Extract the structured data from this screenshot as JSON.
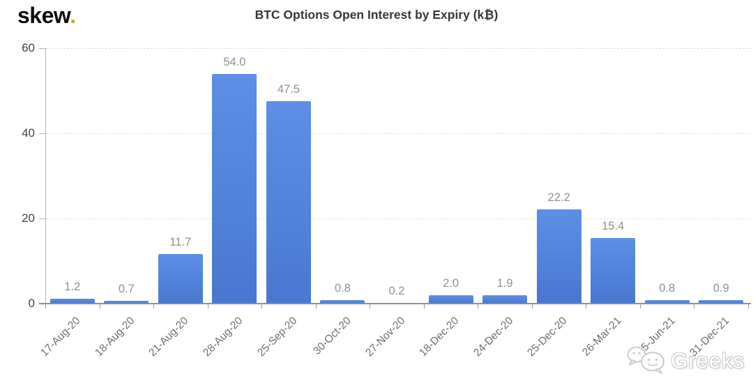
{
  "logo": {
    "text": "skew",
    "dot": "."
  },
  "watermark": {
    "icon": "wechat-icon",
    "text": "Greeks"
  },
  "chart_data": {
    "type": "bar",
    "title": "BTC Options Open Interest by Expiry (k₿)",
    "categories": [
      "17-Aug-20",
      "18-Aug-20",
      "21-Aug-20",
      "28-Aug-20",
      "25-Sep-20",
      "30-Oct-20",
      "27-Nov-20",
      "18-Dec-20",
      "24-Dec-20",
      "25-Dec-20",
      "26-Mar-21",
      "25-Jun-21",
      "31-Dec-21"
    ],
    "values": [
      1.2,
      0.7,
      11.7,
      54.0,
      47.5,
      0.8,
      0.2,
      2.0,
      1.9,
      22.2,
      15.4,
      0.8,
      0.9
    ],
    "value_labels": [
      "1.2",
      "0.7",
      "11.7",
      "54.0",
      "47.5",
      "0.8",
      "0.2",
      "2.0",
      "1.9",
      "22.2",
      "15.4",
      "0.8",
      "0.9"
    ],
    "xlabel": "",
    "ylabel": "",
    "ylim": [
      0,
      60
    ],
    "yticks": [
      0,
      20,
      40,
      60
    ],
    "grid": "horizontal-dashed",
    "legend": "none",
    "x_label_rotation": -45,
    "bar_color": "#5586dd",
    "bar_gradient_top": "#5e8ee6",
    "bar_gradient_bottom": "#4a76d0",
    "value_label_color": "#909090",
    "y_tick_label_color": "#424242",
    "x_tick_label_color": "#6e6e6e",
    "axis_color": "#b3b3b3",
    "baseline_color": "#8f8f8f",
    "gridline_color": "#dedede",
    "title_color": "#373737",
    "logo_dot_color": "#c9a23f"
  }
}
